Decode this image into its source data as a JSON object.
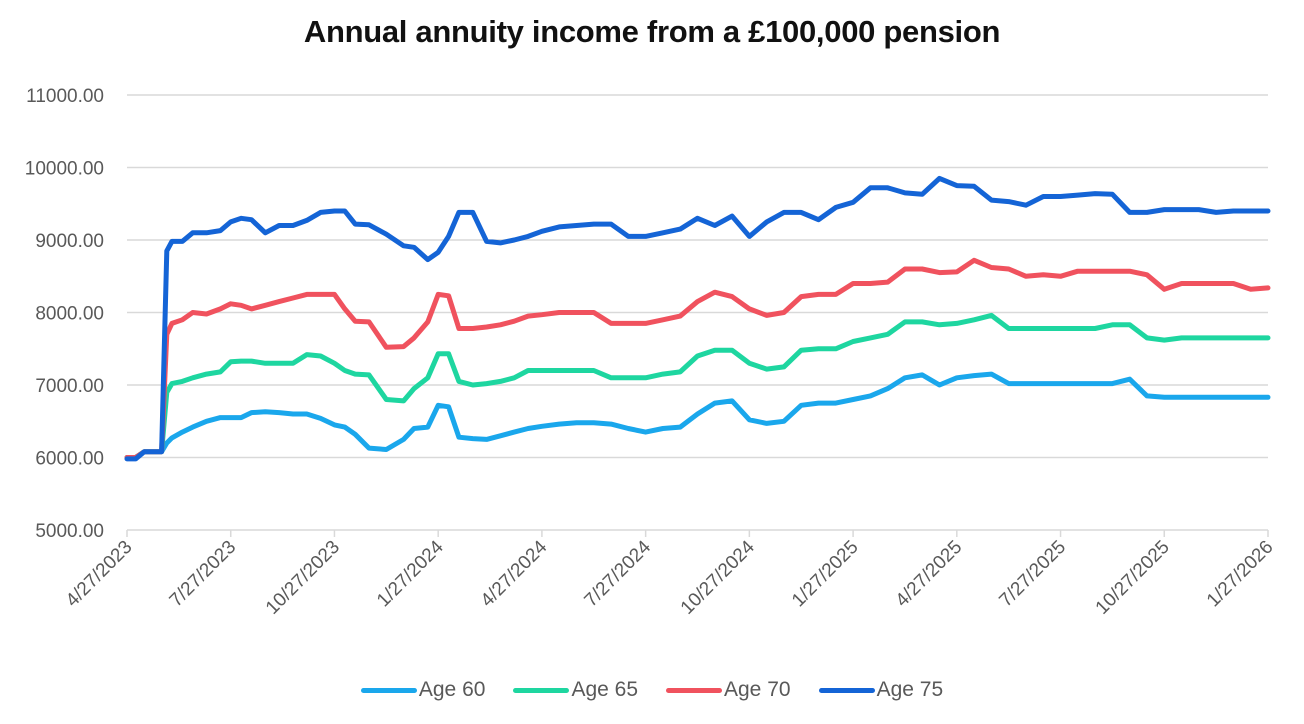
{
  "chart_data": {
    "type": "line",
    "title": "Annual annuity income from a £100,000 pension",
    "xlabel": "",
    "ylabel": "",
    "ylim": [
      5000,
      11000
    ],
    "yticks": [
      "5000.00",
      "6000.00",
      "7000.00",
      "8000.00",
      "9000.00",
      "10000.00",
      "11000.00"
    ],
    "xticks": [
      "4/27/2023",
      "7/27/2023",
      "10/27/2023",
      "1/27/2024",
      "4/27/2024",
      "7/27/2024",
      "10/27/2024",
      "1/27/2025",
      "4/27/2025",
      "7/27/2025",
      "10/27/2025",
      "1/27/2026"
    ],
    "grid": true,
    "legend_position": "bottom",
    "x_index_note": "x is months since 4/27/2023 (0 to 33)",
    "x": [
      0,
      0.25,
      0.5,
      0.75,
      1.0,
      1.15,
      1.3,
      1.6,
      1.9,
      2.3,
      2.7,
      3.0,
      3.3,
      3.6,
      4.0,
      4.4,
      4.8,
      5.2,
      5.6,
      6.0,
      6.3,
      6.6,
      7.0,
      7.5,
      8.0,
      8.3,
      8.7,
      9.0,
      9.3,
      9.6,
      10.0,
      10.4,
      10.8,
      11.2,
      11.6,
      12.0,
      12.5,
      13.0,
      13.5,
      14.0,
      14.5,
      15.0,
      15.5,
      16.0,
      16.5,
      17.0,
      17.5,
      18.0,
      18.5,
      19.0,
      19.5,
      20.0,
      20.5,
      21.0,
      21.5,
      22.0,
      22.5,
      23.0,
      23.5,
      24.0,
      24.5,
      25.0,
      25.5,
      26.0,
      26.5,
      27.0,
      27.5,
      28.0,
      28.5,
      29.0,
      29.5,
      30.0,
      30.5,
      31.0,
      31.5,
      32.0,
      32.5,
      33.0
    ],
    "series": [
      {
        "name": "Age 60",
        "color": "#1aa7ec",
        "values": [
          6000,
          6000,
          6080,
          6080,
          6080,
          6200,
          6270,
          6350,
          6420,
          6500,
          6550,
          6550,
          6550,
          6620,
          6630,
          6620,
          6600,
          6600,
          6540,
          6450,
          6420,
          6320,
          6130,
          6110,
          6250,
          6400,
          6420,
          6720,
          6700,
          6280,
          6260,
          6250,
          6300,
          6350,
          6400,
          6430,
          6460,
          6480,
          6480,
          6460,
          6400,
          6350,
          6400,
          6420,
          6600,
          6750,
          6780,
          6520,
          6470,
          6500,
          6720,
          6750,
          6750,
          6800,
          6850,
          6950,
          7100,
          7140,
          7000,
          7100,
          7130,
          7150,
          7020,
          7020,
          7020,
          7020,
          7020,
          7020,
          7020,
          7080,
          6850,
          6830,
          6830,
          6830,
          6830,
          6830,
          6830,
          6830
        ]
      },
      {
        "name": "Age 65",
        "color": "#1ed6a0",
        "values": [
          6000,
          6000,
          6080,
          6080,
          6080,
          6900,
          7020,
          7050,
          7100,
          7150,
          7180,
          7320,
          7330,
          7330,
          7300,
          7300,
          7300,
          7420,
          7400,
          7300,
          7200,
          7150,
          7140,
          6800,
          6780,
          6950,
          7100,
          7430,
          7430,
          7050,
          7000,
          7020,
          7050,
          7100,
          7200,
          7200,
          7200,
          7200,
          7200,
          7100,
          7100,
          7100,
          7150,
          7180,
          7400,
          7480,
          7480,
          7300,
          7220,
          7250,
          7480,
          7500,
          7500,
          7600,
          7650,
          7700,
          7870,
          7870,
          7830,
          7850,
          7900,
          7960,
          7780,
          7780,
          7780,
          7780,
          7780,
          7780,
          7830,
          7830,
          7650,
          7620,
          7650,
          7650,
          7650,
          7650,
          7650,
          7650
        ]
      },
      {
        "name": "Age 70",
        "color": "#f0525e",
        "values": [
          6000,
          6000,
          6080,
          6080,
          6080,
          7700,
          7850,
          7900,
          8000,
          7980,
          8050,
          8120,
          8100,
          8050,
          8100,
          8150,
          8200,
          8250,
          8250,
          8250,
          8050,
          7880,
          7870,
          7520,
          7530,
          7650,
          7870,
          8250,
          8230,
          7780,
          7780,
          7800,
          7830,
          7880,
          7950,
          7970,
          8000,
          8000,
          8000,
          7850,
          7850,
          7850,
          7900,
          7950,
          8150,
          8280,
          8220,
          8050,
          7960,
          8000,
          8220,
          8250,
          8250,
          8400,
          8400,
          8420,
          8600,
          8600,
          8550,
          8560,
          8720,
          8620,
          8600,
          8500,
          8520,
          8500,
          8570,
          8570,
          8570,
          8570,
          8520,
          8320,
          8400,
          8400,
          8400,
          8400,
          8320,
          8340
        ]
      },
      {
        "name": "Age 75",
        "color": "#1464d6",
        "values": [
          5980,
          5980,
          6080,
          6080,
          6080,
          8850,
          8980,
          8980,
          9100,
          9100,
          9130,
          9250,
          9300,
          9280,
          9100,
          9200,
          9200,
          9270,
          9380,
          9400,
          9400,
          9220,
          9210,
          9080,
          8920,
          8900,
          8730,
          8830,
          9050,
          9380,
          9380,
          8980,
          8960,
          9000,
          9050,
          9120,
          9180,
          9200,
          9220,
          9220,
          9050,
          9050,
          9100,
          9150,
          9300,
          9200,
          9330,
          9050,
          9250,
          9380,
          9380,
          9280,
          9450,
          9520,
          9720,
          9720,
          9650,
          9630,
          9850,
          9750,
          9740,
          9550,
          9530,
          9480,
          9600,
          9600,
          9620,
          9640,
          9630,
          9380,
          9380,
          9420,
          9420,
          9420,
          9380,
          9400,
          9400,
          9400
        ]
      }
    ]
  },
  "legend": {
    "items": [
      {
        "label": "Age 60",
        "color": "#1aa7ec"
      },
      {
        "label": "Age 65",
        "color": "#1ed6a0"
      },
      {
        "label": "Age 70",
        "color": "#f0525e"
      },
      {
        "label": "Age 75",
        "color": "#1464d6"
      }
    ]
  }
}
